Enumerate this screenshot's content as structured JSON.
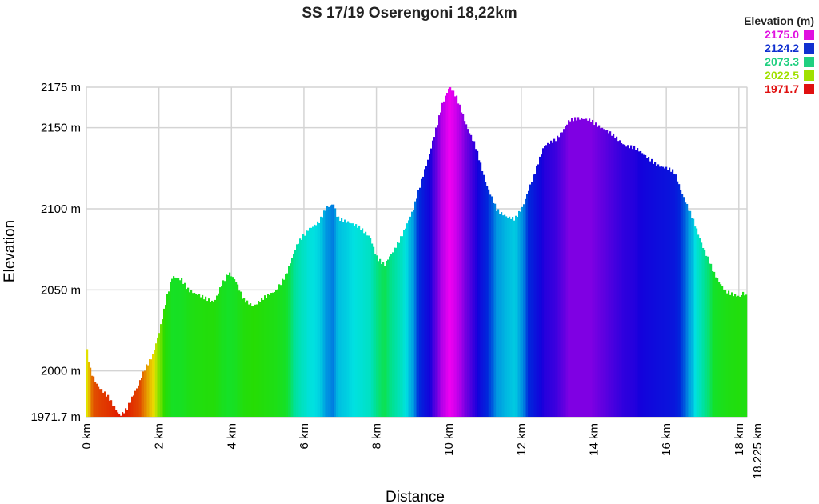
{
  "chart_data": {
    "type": "area",
    "title": "SS 17/19 Oserengoni 18,22km",
    "xlabel": "Distance",
    "ylabel": "Elevation",
    "xlim": [
      0,
      18.225
    ],
    "ylim": [
      1971.7,
      2175
    ],
    "grid": true,
    "x_ticks": [
      "0 km",
      "2 km",
      "4 km",
      "6 km",
      "8 km",
      "10 km",
      "12 km",
      "14 km",
      "16 km",
      "18 km",
      "18.225 km"
    ],
    "x_tick_values": [
      0,
      2,
      4,
      6,
      8,
      10,
      12,
      14,
      16,
      18,
      18.225
    ],
    "y_ticks": [
      "1971.7 m",
      "2000 m",
      "2050 m",
      "2100 m",
      "2150 m",
      "2175 m"
    ],
    "y_tick_values": [
      1971.7,
      2000,
      2050,
      2100,
      2150,
      2175
    ],
    "legend": {
      "title": "Elevation (m)",
      "placement": "top-right",
      "entries": [
        {
          "label": "2175.0",
          "color": "#e010e0"
        },
        {
          "label": "2124.2",
          "color": "#1030d0"
        },
        {
          "label": "2073.3",
          "color": "#20d080"
        },
        {
          "label": "2022.5",
          "color": "#a0e000"
        },
        {
          "label": "1971.7",
          "color": "#e01010"
        }
      ]
    },
    "x": [
      0,
      0.1,
      0.3,
      0.6,
      0.9,
      1.1,
      1.4,
      1.6,
      1.8,
      2.0,
      2.2,
      2.35,
      2.6,
      2.8,
      3.0,
      3.2,
      3.5,
      3.7,
      3.9,
      4.1,
      4.3,
      4.6,
      4.9,
      5.2,
      5.5,
      5.8,
      6.1,
      6.4,
      6.6,
      6.8,
      6.9,
      7.2,
      7.5,
      7.8,
      8.0,
      8.2,
      8.4,
      8.6,
      8.8,
      9.0,
      9.2,
      9.4,
      9.6,
      9.8,
      10.0,
      10.2,
      10.5,
      10.7,
      11.0,
      11.3,
      11.6,
      11.8,
      12.0,
      12.3,
      12.6,
      12.9,
      13.1,
      13.3,
      13.6,
      13.9,
      14.2,
      14.5,
      14.8,
      15.1,
      15.4,
      15.7,
      16.0,
      16.2,
      16.4,
      16.7,
      17.0,
      17.3,
      17.6,
      17.8,
      18.0,
      18.1,
      18.225
    ],
    "y": [
      2013,
      2000,
      1990,
      1983,
      1973,
      1977,
      1990,
      2002,
      2010,
      2025,
      2045,
      2058,
      2057,
      2050,
      2047,
      2045,
      2043,
      2053,
      2060,
      2055,
      2045,
      2040,
      2045,
      2050,
      2060,
      2078,
      2088,
      2092,
      2100,
      2103,
      2095,
      2092,
      2088,
      2083,
      2070,
      2065,
      2072,
      2080,
      2090,
      2100,
      2115,
      2130,
      2148,
      2165,
      2175,
      2168,
      2150,
      2140,
      2115,
      2100,
      2095,
      2093,
      2100,
      2120,
      2138,
      2142,
      2148,
      2155,
      2155,
      2155,
      2150,
      2145,
      2140,
      2138,
      2132,
      2128,
      2125,
      2122,
      2110,
      2095,
      2075,
      2060,
      2050,
      2047,
      2045,
      2048,
      2045
    ]
  }
}
